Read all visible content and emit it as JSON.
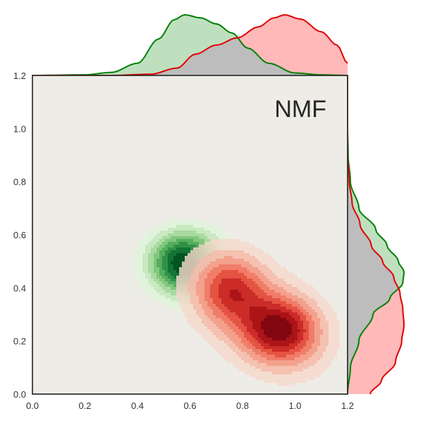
{
  "chart_data": {
    "type": "kde-joint",
    "annotation": "NMF",
    "xlim": [
      0.0,
      1.2
    ],
    "ylim": [
      0.0,
      1.2
    ],
    "x_ticks": [
      "0.0",
      "0.2",
      "0.4",
      "0.6",
      "0.8",
      "1.0",
      "1.2"
    ],
    "y_ticks": [
      "0.0",
      "0.2",
      "0.4",
      "0.6",
      "0.8",
      "1.0",
      "1.2"
    ],
    "grid": false,
    "background": "#eeece6",
    "series": [
      {
        "color": "#008000",
        "fill": "#bfe0bf",
        "palette": [
          "#e0f3dc",
          "#c6e8bf",
          "#a6d99d",
          "#7fc57b",
          "#52ad5e",
          "#2e8f45",
          "#137235",
          "#00541f"
        ],
        "centers": [
          {
            "x": 0.56,
            "y": 0.48,
            "sx": 0.085,
            "sy": 0.075,
            "rho": 0.0,
            "w": 1.0
          },
          {
            "x": 0.72,
            "y": 0.38,
            "sx": 0.1,
            "sy": 0.09,
            "rho": -0.35,
            "w": 0.6
          },
          {
            "x": 0.6,
            "y": 0.56,
            "sx": 0.1,
            "sy": 0.06,
            "rho": 0.0,
            "w": 0.35
          }
        ],
        "x_marginal": {
          "x": [
            0.0,
            0.2,
            0.3,
            0.4,
            0.48,
            0.54,
            0.58,
            0.64,
            0.7,
            0.76,
            0.82,
            0.9,
            1.0,
            1.1,
            1.2
          ],
          "y": [
            0.0,
            0.01,
            0.05,
            0.2,
            0.6,
            0.92,
            1.0,
            0.95,
            0.85,
            0.7,
            0.45,
            0.2,
            0.04,
            0.01,
            0.0
          ]
        },
        "y_marginal": {
          "y": [
            0.0,
            0.1,
            0.2,
            0.3,
            0.36,
            0.42,
            0.46,
            0.5,
            0.56,
            0.62,
            0.7,
            0.8,
            0.9,
            1.0,
            1.2
          ],
          "d": [
            0.0,
            0.05,
            0.2,
            0.45,
            0.75,
            0.98,
            1.0,
            0.9,
            0.7,
            0.5,
            0.2,
            0.05,
            0.01,
            0.0,
            0.0
          ]
        }
      },
      {
        "color": "#e00000",
        "fill": "#ffb9b9",
        "palette": [
          "#f7d8cc",
          "#f5bba9",
          "#f39a85",
          "#ef7560",
          "#e24a3a",
          "#c52322",
          "#a50f15",
          "#790510"
        ],
        "centers": [
          {
            "x": 0.95,
            "y": 0.24,
            "sx": 0.1,
            "sy": 0.085,
            "rho": 0.0,
            "w": 1.0
          },
          {
            "x": 0.75,
            "y": 0.4,
            "sx": 0.09,
            "sy": 0.09,
            "rho": 0.0,
            "w": 0.7
          },
          {
            "x": 0.85,
            "y": 0.3,
            "sx": 0.17,
            "sy": 0.15,
            "rho": -0.45,
            "w": 0.5
          }
        ],
        "x_marginal": {
          "x": [
            0.0,
            0.3,
            0.45,
            0.55,
            0.62,
            0.7,
            0.78,
            0.86,
            0.92,
            0.96,
            1.02,
            1.1,
            1.16,
            1.2
          ],
          "y": [
            0.0,
            0.0,
            0.02,
            0.12,
            0.35,
            0.5,
            0.62,
            0.8,
            0.95,
            1.0,
            0.93,
            0.72,
            0.5,
            0.2
          ]
        },
        "y_marginal": {
          "y": [
            0.0,
            0.05,
            0.12,
            0.2,
            0.26,
            0.32,
            0.38,
            0.44,
            0.5,
            0.56,
            0.64,
            0.72,
            0.8,
            0.9,
            1.0,
            1.2
          ],
          "d": [
            0.4,
            0.6,
            0.85,
            0.96,
            1.0,
            0.98,
            0.93,
            0.82,
            0.62,
            0.42,
            0.22,
            0.08,
            0.03,
            0.0,
            0.0,
            0.0
          ]
        }
      }
    ]
  }
}
